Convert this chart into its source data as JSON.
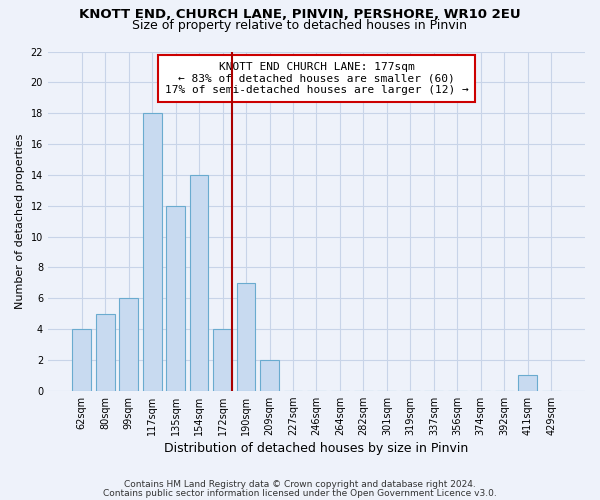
{
  "title": "KNOTT END, CHURCH LANE, PINVIN, PERSHORE, WR10 2EU",
  "subtitle": "Size of property relative to detached houses in Pinvin",
  "xlabel": "Distribution of detached houses by size in Pinvin",
  "ylabel": "Number of detached properties",
  "bar_color": "#c8daf0",
  "bar_edgecolor": "#6aabcf",
  "bins": [
    "62sqm",
    "80sqm",
    "99sqm",
    "117sqm",
    "135sqm",
    "154sqm",
    "172sqm",
    "190sqm",
    "209sqm",
    "227sqm",
    "246sqm",
    "264sqm",
    "282sqm",
    "301sqm",
    "319sqm",
    "337sqm",
    "356sqm",
    "374sqm",
    "392sqm",
    "411sqm",
    "429sqm"
  ],
  "values": [
    4,
    5,
    6,
    18,
    12,
    14,
    4,
    7,
    2,
    0,
    0,
    0,
    0,
    0,
    0,
    0,
    0,
    0,
    0,
    1,
    0
  ],
  "ylim": [
    0,
    22
  ],
  "yticks": [
    0,
    2,
    4,
    6,
    8,
    10,
    12,
    14,
    16,
    18,
    20,
    22
  ],
  "vline_color": "#aa0000",
  "annotation_title": "KNOTT END CHURCH LANE: 177sqm",
  "annotation_line1": "← 83% of detached houses are smaller (60)",
  "annotation_line2": "17% of semi-detached houses are larger (12) →",
  "footer1": "Contains HM Land Registry data © Crown copyright and database right 2024.",
  "footer2": "Contains public sector information licensed under the Open Government Licence v3.0.",
  "background_color": "#eef2fa",
  "grid_color": "#d8e0f0",
  "title_fontsize": 9.5,
  "subtitle_fontsize": 9
}
